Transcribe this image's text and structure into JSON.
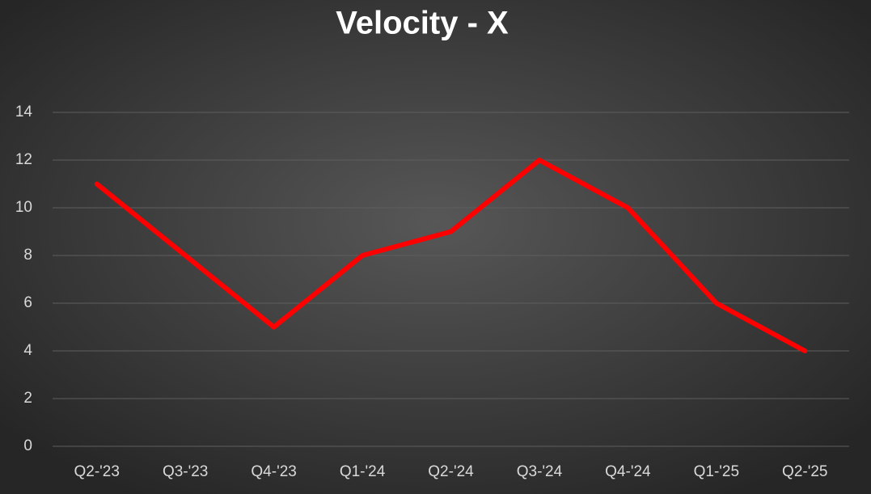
{
  "chart_data": {
    "type": "line",
    "title": "Velocity - X",
    "categories": [
      "Q2-'23",
      "Q3-'23",
      "Q4-'23",
      "Q1-'24",
      "Q2-'24",
      "Q3-'24",
      "Q4-'24",
      "Q1-'25",
      "Q2-'25"
    ],
    "series": [
      {
        "name": "Velocity - X",
        "color": "#ff0000",
        "values": [
          11,
          8,
          5,
          8,
          9,
          12,
          10,
          6,
          4
        ]
      }
    ],
    "ylim": [
      0,
      14
    ],
    "yticks": [
      0,
      2,
      4,
      6,
      8,
      10,
      12,
      14
    ],
    "grid": true,
    "legend": false
  }
}
